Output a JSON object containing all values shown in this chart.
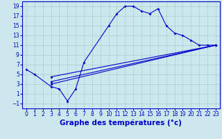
{
  "xlabel": "Graphe des températures (°c)",
  "background_color": "#cce8ec",
  "grid_color": "#aacfd4",
  "line_color": "#0000cc",
  "xlim": [
    -0.5,
    23.5
  ],
  "ylim": [
    -2,
    20
  ],
  "xticks": [
    0,
    1,
    2,
    3,
    4,
    5,
    6,
    7,
    8,
    9,
    10,
    11,
    12,
    13,
    14,
    15,
    16,
    17,
    18,
    19,
    20,
    21,
    22,
    23
  ],
  "yticks": [
    -1,
    1,
    3,
    5,
    7,
    9,
    11,
    13,
    15,
    17,
    19
  ],
  "curve_x": [
    0,
    1,
    3,
    4,
    5,
    6,
    7,
    10,
    11,
    12,
    13,
    14,
    15,
    16,
    17,
    18,
    19,
    20,
    21,
    22,
    23
  ],
  "curve_y": [
    6,
    5,
    2.5,
    2,
    -0.5,
    2,
    7.5,
    15,
    17.5,
    19,
    19,
    18,
    17.5,
    18.5,
    15,
    13.5,
    13,
    12,
    11,
    11,
    11
  ],
  "line1_x": [
    3,
    23
  ],
  "line1_y": [
    3.0,
    11.0
  ],
  "line2_x": [
    3,
    23
  ],
  "line2_y": [
    3.5,
    11.0
  ],
  "line3_x": [
    3,
    23
  ],
  "line3_y": [
    4.5,
    11.0
  ],
  "xlabel_fontsize": 7.5,
  "tick_fontsize": 5.5
}
